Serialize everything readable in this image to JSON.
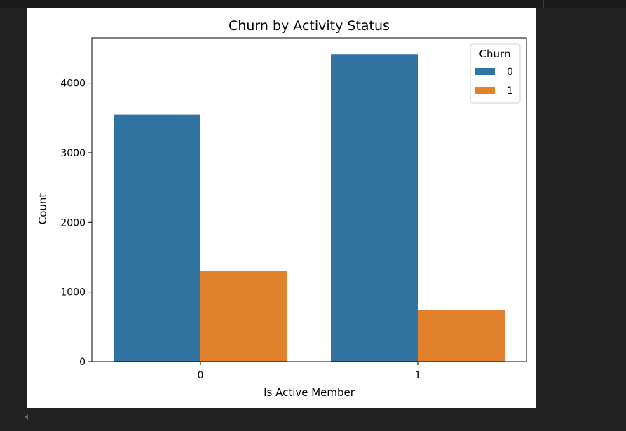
{
  "chart_data": {
    "type": "bar",
    "title": "Churn by Activity Status",
    "xlabel": "Is Active Member",
    "ylabel": "Count",
    "categories": [
      "0",
      "1"
    ],
    "ylim": [
      0,
      4650
    ],
    "yticks": [
      0,
      1000,
      2000,
      3000,
      4000
    ],
    "ytick_labels": [
      "0",
      "1000",
      "2000",
      "3000",
      "4000"
    ],
    "legend": {
      "title": "Churn",
      "placement": "top-right"
    },
    "series": [
      {
        "name": "0",
        "color": "#3274a1",
        "values": [
          3547,
          4416
        ]
      },
      {
        "name": "1",
        "color": "#e1812c",
        "values": [
          1302,
          735
        ]
      }
    ],
    "grid": false
  }
}
